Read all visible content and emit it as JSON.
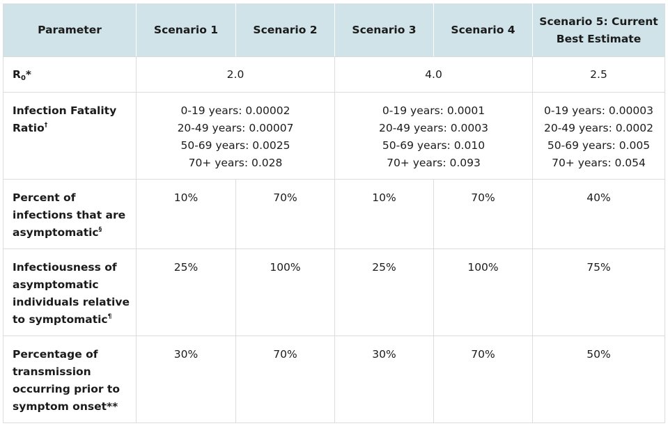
{
  "table": {
    "headers": {
      "parameter": "Parameter",
      "s1": "Scenario 1",
      "s2": "Scenario 2",
      "s3": "Scenario 3",
      "s4": "Scenario 4",
      "s5_line1": "Scenario 5: Current",
      "s5_line2": "Best Estimate"
    },
    "rows": {
      "r0": {
        "label_main": "R",
        "label_sub": "0",
        "label_tail": "*",
        "s1_s2": "2.0",
        "s3_s4": "4.0",
        "s5": "2.5"
      },
      "ifr": {
        "label": "Infection Fatality Ratio",
        "footnote": "†",
        "s1_s2": [
          "0-19 years: 0.00002",
          "20-49 years: 0.00007",
          "50-69 years: 0.0025",
          "70+ years: 0.028"
        ],
        "s3_s4": [
          "0-19 years: 0.0001",
          "20-49 years: 0.0003",
          "50-69 years: 0.010",
          "70+ years: 0.093"
        ],
        "s5": [
          "0-19 years: 0.00003",
          "20-49 years: 0.0002",
          "50-69 years: 0.005",
          "70+ years: 0.054"
        ]
      },
      "asymptomatic": {
        "label": "Percent of infections that are asymptomatic",
        "footnote": "§",
        "values": [
          "10%",
          "70%",
          "10%",
          "70%",
          "40%"
        ]
      },
      "infectiousness": {
        "label": "Infectiousness of asymptomatic individuals relative to symptomatic",
        "footnote": "¶",
        "values": [
          "25%",
          "100%",
          "25%",
          "100%",
          "75%"
        ]
      },
      "presymptomatic": {
        "label": "Percentage of transmission occurring prior to symptom onset**",
        "values": [
          "30%",
          "70%",
          "30%",
          "70%",
          "50%"
        ]
      }
    }
  }
}
